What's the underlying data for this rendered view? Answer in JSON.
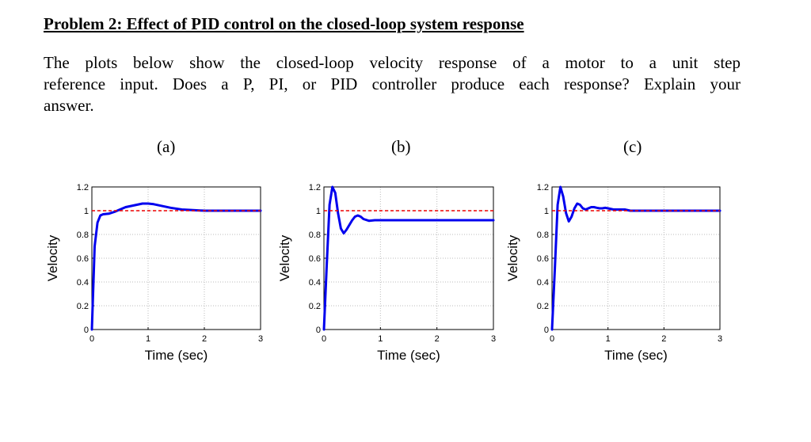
{
  "problem": {
    "title": "Problem 2: Effect of PID control on the closed-loop system response",
    "lines": [
      "The plots below show the closed-loop velocity response of a motor to a unit step",
      "reference input.  Does a P, PI, or PID controller produce each response? Explain your",
      "answer."
    ]
  },
  "colors": {
    "response": "#0000ee",
    "reference": "#ee0000",
    "grid": "#bbbbbb"
  },
  "chart_data": [
    {
      "type": "line",
      "panel_label": "(a)",
      "xlabel": "Time (sec)",
      "ylabel": "Velocity",
      "xlim": [
        0,
        3
      ],
      "ylim": [
        0,
        1.2
      ],
      "xticks": [
        "0",
        "1",
        "2",
        "3"
      ],
      "yticks": [
        "0",
        "0.2",
        "0.4",
        "0.6",
        "0.8",
        "1",
        "1.2"
      ],
      "grid": true,
      "series": [
        {
          "style": "solid-blue",
          "x": [
            0,
            0.05,
            0.1,
            0.15,
            0.2,
            0.3,
            0.4,
            0.5,
            0.6,
            0.7,
            0.8,
            0.9,
            1.0,
            1.1,
            1.2,
            1.4,
            1.6,
            1.8,
            2.0,
            2.2,
            2.5,
            2.8,
            3.0
          ],
          "y": [
            0,
            0.7,
            0.9,
            0.96,
            0.97,
            0.975,
            0.99,
            1.01,
            1.03,
            1.04,
            1.05,
            1.06,
            1.06,
            1.055,
            1.045,
            1.025,
            1.01,
            1.005,
            1.0,
            1.0,
            1.0,
            1.0,
            1.0
          ]
        },
        {
          "style": "dashed-red",
          "x": [
            0,
            3
          ],
          "y": [
            1,
            1
          ]
        }
      ]
    },
    {
      "type": "line",
      "panel_label": "(b)",
      "xlabel": "Time (sec)",
      "ylabel": "Velocity",
      "xlim": [
        0,
        3
      ],
      "ylim": [
        0,
        1.2
      ],
      "xticks": [
        "0",
        "1",
        "2",
        "3"
      ],
      "yticks": [
        "0",
        "0.2",
        "0.4",
        "0.6",
        "0.8",
        "1",
        "1.2"
      ],
      "grid": true,
      "series": [
        {
          "style": "solid-blue",
          "x": [
            0,
            0.05,
            0.1,
            0.15,
            0.2,
            0.25,
            0.3,
            0.35,
            0.4,
            0.45,
            0.5,
            0.55,
            0.6,
            0.65,
            0.7,
            0.8,
            0.9,
            1.0,
            1.1,
            1.2,
            1.5,
            2.0,
            2.5,
            3.0
          ],
          "y": [
            0,
            0.55,
            1.05,
            1.2,
            1.15,
            0.98,
            0.85,
            0.81,
            0.84,
            0.88,
            0.92,
            0.95,
            0.96,
            0.95,
            0.93,
            0.915,
            0.92,
            0.92,
            0.92,
            0.92,
            0.92,
            0.92,
            0.92,
            0.92
          ]
        },
        {
          "style": "dashed-red",
          "x": [
            0,
            3
          ],
          "y": [
            1,
            1
          ]
        }
      ]
    },
    {
      "type": "line",
      "panel_label": "(c)",
      "xlabel": "Time (sec)",
      "ylabel": "Velocity",
      "xlim": [
        0,
        3
      ],
      "ylim": [
        0,
        1.2
      ],
      "xticks": [
        "0",
        "1",
        "2",
        "3"
      ],
      "yticks": [
        "0",
        "0.2",
        "0.4",
        "0.6",
        "0.8",
        "1",
        "1.2"
      ],
      "grid": true,
      "series": [
        {
          "style": "solid-blue",
          "x": [
            0,
            0.05,
            0.1,
            0.15,
            0.2,
            0.25,
            0.3,
            0.35,
            0.4,
            0.45,
            0.5,
            0.55,
            0.6,
            0.65,
            0.7,
            0.75,
            0.8,
            0.85,
            0.9,
            0.95,
            1.0,
            1.1,
            1.2,
            1.3,
            1.4,
            1.5,
            1.7,
            2.0,
            2.3,
            2.6,
            3.0
          ],
          "y": [
            0,
            0.5,
            1.05,
            1.2,
            1.12,
            0.98,
            0.91,
            0.95,
            1.02,
            1.06,
            1.05,
            1.02,
            1.01,
            1.02,
            1.03,
            1.03,
            1.025,
            1.02,
            1.02,
            1.025,
            1.02,
            1.01,
            1.01,
            1.01,
            1.0,
            1.0,
            1.0,
            1.0,
            1.0,
            1.0,
            1.0
          ]
        },
        {
          "style": "dashed-red",
          "x": [
            0,
            3
          ],
          "y": [
            1,
            1
          ]
        }
      ]
    }
  ]
}
